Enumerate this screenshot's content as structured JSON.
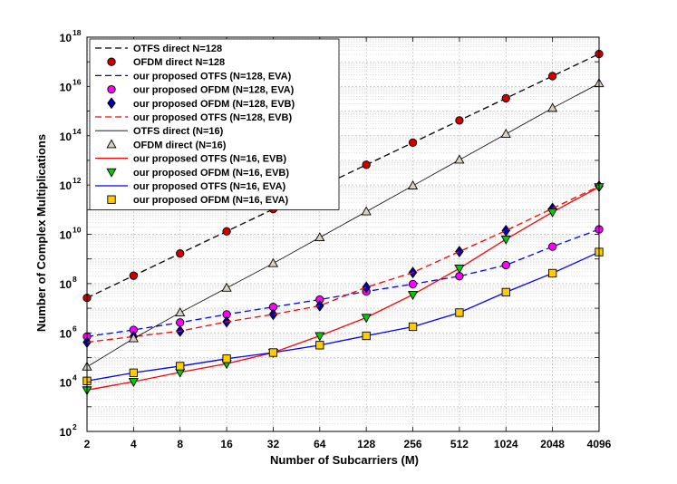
{
  "chart_data": {
    "type": "line",
    "xlabel": "Number of Subcarriers (M)",
    "ylabel": "Number of Complex Multiplications",
    "x_tick_labels": [
      "2",
      "4",
      "8",
      "16",
      "32",
      "64",
      "128",
      "256",
      "512",
      "1024",
      "2048",
      "4096"
    ],
    "y_ticks": [
      {
        "base": "10",
        "exp": "2"
      },
      {
        "base": "10",
        "exp": "4"
      },
      {
        "base": "10",
        "exp": "6"
      },
      {
        "base": "10",
        "exp": "8"
      },
      {
        "base": "10",
        "exp": "10"
      },
      {
        "base": "10",
        "exp": "12"
      },
      {
        "base": "10",
        "exp": "14"
      },
      {
        "base": "10",
        "exp": "16"
      },
      {
        "base": "10",
        "exp": "18"
      }
    ],
    "ylim_log10": [
      2,
      18
    ],
    "x_log2": [
      1,
      2,
      3,
      4,
      5,
      6,
      7,
      8,
      9,
      10,
      11,
      12
    ],
    "grid": true,
    "legend_position": "top-left",
    "series": [
      {
        "name": "OTFS direct N=128",
        "color": "#000000",
        "dash": "dashed",
        "marker": "none",
        "log10_values": [
          7.42,
          8.32,
          9.22,
          10.12,
          11.02,
          11.92,
          12.82,
          13.72,
          14.62,
          15.52,
          16.42,
          17.32
        ]
      },
      {
        "name": "OFDM direct N=128",
        "color": "#000000",
        "dash": "none",
        "marker": "circle",
        "marker_fill": "#cc0000",
        "log10_values": [
          7.42,
          8.32,
          9.22,
          10.12,
          11.02,
          11.92,
          12.82,
          13.72,
          14.62,
          15.52,
          16.42,
          17.32
        ]
      },
      {
        "name": "our proposed OTFS (N=128, EVA)",
        "color": "#0000ff",
        "dash": "dashed",
        "marker": "none",
        "log10_values": [
          5.85,
          6.12,
          6.42,
          6.75,
          7.05,
          7.35,
          7.68,
          7.98,
          8.3,
          8.75,
          9.5,
          10.2
        ]
      },
      {
        "name": "our proposed OFDM (N=128, EVA)",
        "color": "#000000",
        "dash": "none",
        "marker": "circle",
        "marker_fill": "#ff00ff",
        "log10_values": [
          5.85,
          6.12,
          6.42,
          6.75,
          7.05,
          7.35,
          7.68,
          7.98,
          8.3,
          8.75,
          9.5,
          10.2
        ]
      },
      {
        "name": "our proposed OFDM (N=128, EVB)",
        "color": "#000000",
        "dash": "none",
        "marker": "diamond",
        "marker_fill": "#0000aa",
        "log10_values": [
          5.62,
          5.85,
          6.07,
          6.45,
          6.75,
          7.1,
          7.85,
          8.45,
          9.3,
          10.15,
          11.05,
          11.95
        ]
      },
      {
        "name": "our proposed OTFS (N=128, EVB)",
        "color": "#ff0000",
        "dash": "dashed",
        "marker": "none",
        "log10_values": [
          5.62,
          5.85,
          6.07,
          6.45,
          6.75,
          7.1,
          7.85,
          8.45,
          9.3,
          10.15,
          11.05,
          11.95
        ]
      },
      {
        "name": "OTFS direct (N=16)",
        "color": "#000000",
        "dash": "solid",
        "marker": "none",
        "line_width": 0.8,
        "log10_values": [
          4.62,
          5.77,
          6.82,
          7.82,
          8.82,
          9.87,
          10.92,
          11.97,
          13.02,
          14.07,
          15.12,
          16.12
        ]
      },
      {
        "name": "OFDM direct (N=16)",
        "color": "#000000",
        "dash": "none",
        "marker": "triangle-up",
        "marker_fill": "#d8d0c0",
        "log10_values": [
          4.62,
          5.77,
          6.82,
          7.82,
          8.82,
          9.87,
          10.92,
          11.97,
          13.02,
          14.07,
          15.12,
          16.12
        ]
      },
      {
        "name": "our proposed OTFS (N=16, EVB)",
        "color": "#ff0000",
        "dash": "solid",
        "marker": "none",
        "log10_values": [
          3.68,
          4.02,
          4.4,
          4.75,
          5.2,
          5.88,
          6.62,
          7.55,
          8.62,
          9.8,
          10.9,
          11.92
        ]
      },
      {
        "name": "our proposed OFDM (N=16, EVB)",
        "color": "#000000",
        "dash": "none",
        "marker": "triangle-down",
        "marker_fill": "#00cc00",
        "log10_values": [
          3.68,
          4.02,
          4.4,
          4.75,
          5.2,
          5.88,
          6.62,
          7.55,
          8.62,
          9.8,
          10.9,
          11.92
        ]
      },
      {
        "name": "our proposed OTFS (N=16, EVA)",
        "color": "#0000ff",
        "dash": "solid",
        "marker": "none",
        "log10_values": [
          4.05,
          4.38,
          4.65,
          4.95,
          5.2,
          5.5,
          5.88,
          6.25,
          6.82,
          7.65,
          8.42,
          9.28
        ]
      },
      {
        "name": "our proposed OFDM (N=16, EVA)",
        "color": "#000000",
        "dash": "none",
        "marker": "square",
        "marker_fill": "#ffcc00",
        "log10_values": [
          4.05,
          4.38,
          4.65,
          4.95,
          5.2,
          5.5,
          5.88,
          6.25,
          6.82,
          7.65,
          8.42,
          9.28
        ]
      }
    ]
  }
}
